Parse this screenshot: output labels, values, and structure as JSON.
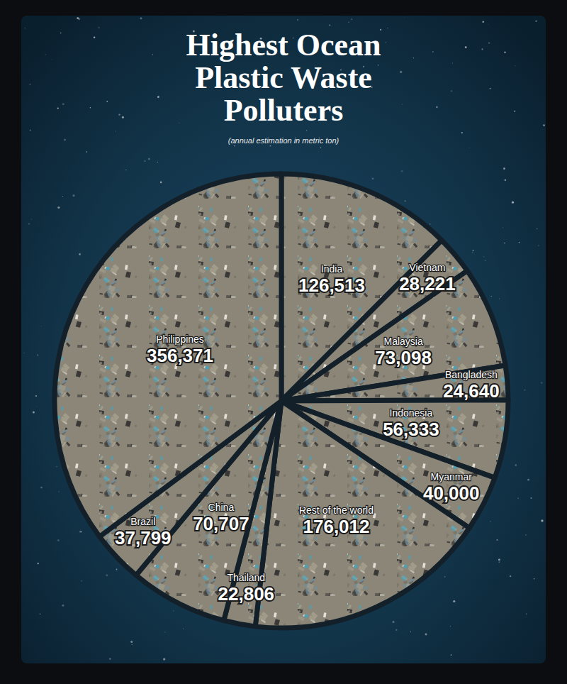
{
  "chart_data": {
    "type": "pie",
    "title": "Highest Ocean Plastic Waste Polluters",
    "subtitle": "(annual estimation in metric ton)",
    "categories": [
      "India",
      "Vietnam",
      "Malaysia",
      "Bangladesh",
      "Indonesia",
      "Myanmar",
      "Rest of the world",
      "Thailand",
      "China",
      "Brazil",
      "Philippines"
    ],
    "values": [
      126513,
      28221,
      73098,
      24640,
      56333,
      40000,
      176012,
      22806,
      70707,
      37799,
      356371
    ],
    "value_labels": [
      "126,513",
      "28,221",
      "73,098",
      "24,640",
      "56,333",
      "40,000",
      "176,012",
      "22,806",
      "70,707",
      "37,799",
      "356,371"
    ],
    "data_labels": true,
    "color": "#8b8677"
  }
}
